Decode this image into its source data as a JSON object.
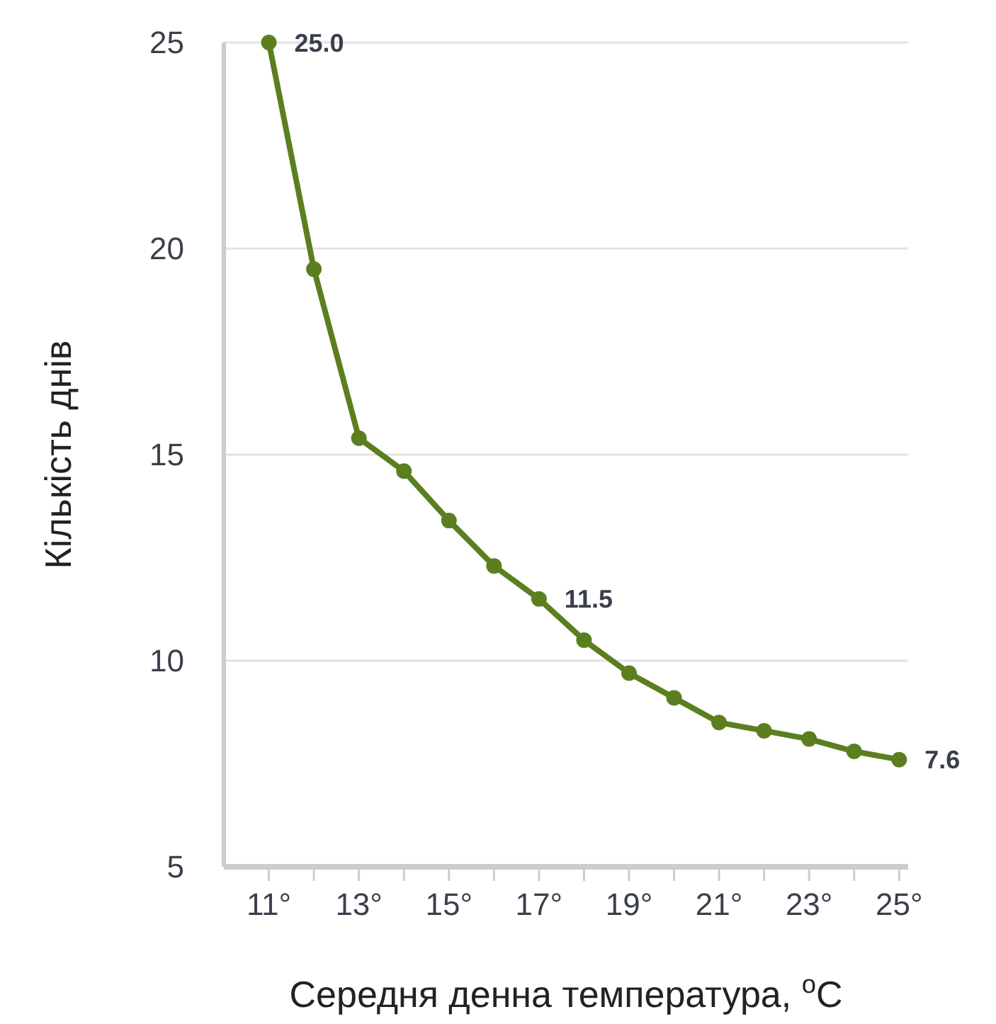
{
  "chart_data": {
    "type": "line",
    "xlabel": "Середня денна температура, $^{o}$C",
    "ylabel": "Кількість днів",
    "x": [
      11,
      12,
      13,
      14,
      15,
      16,
      17,
      18,
      19,
      20,
      21,
      22,
      23,
      24,
      25
    ],
    "series": [
      {
        "color": "#5b7f1f",
        "values": [
          25.0,
          19.5,
          15.4,
          14.6,
          13.4,
          12.3,
          11.5,
          10.5,
          9.7,
          9.1,
          8.5,
          8.3,
          8.1,
          7.8,
          7.6
        ],
        "value_labels": [
          "25.0",
          null,
          null,
          null,
          null,
          null,
          "11.5",
          null,
          null,
          null,
          null,
          null,
          null,
          null,
          "7.6"
        ]
      }
    ],
    "xlim": [
      10,
      25.2
    ],
    "ylim": [
      5,
      25
    ],
    "xticks": [
      {
        "value": 11,
        "label": "11°"
      },
      {
        "value": 12,
        "label": null
      },
      {
        "value": 13,
        "label": "13°"
      },
      {
        "value": 14,
        "label": null
      },
      {
        "value": 15,
        "label": "15°"
      },
      {
        "value": 16,
        "label": null
      },
      {
        "value": 17,
        "label": "17°"
      },
      {
        "value": 18,
        "label": null
      },
      {
        "value": 19,
        "label": "19°"
      },
      {
        "value": 20,
        "label": null
      },
      {
        "value": 21,
        "label": "21°"
      },
      {
        "value": 22,
        "label": null
      },
      {
        "value": 23,
        "label": "23°"
      },
      {
        "value": 24,
        "label": null
      },
      {
        "value": 25,
        "label": "25°"
      }
    ],
    "yticks": [
      5,
      10,
      15,
      20,
      25
    ],
    "grid": "y",
    "marker": "circle",
    "line_style": "solid"
  }
}
